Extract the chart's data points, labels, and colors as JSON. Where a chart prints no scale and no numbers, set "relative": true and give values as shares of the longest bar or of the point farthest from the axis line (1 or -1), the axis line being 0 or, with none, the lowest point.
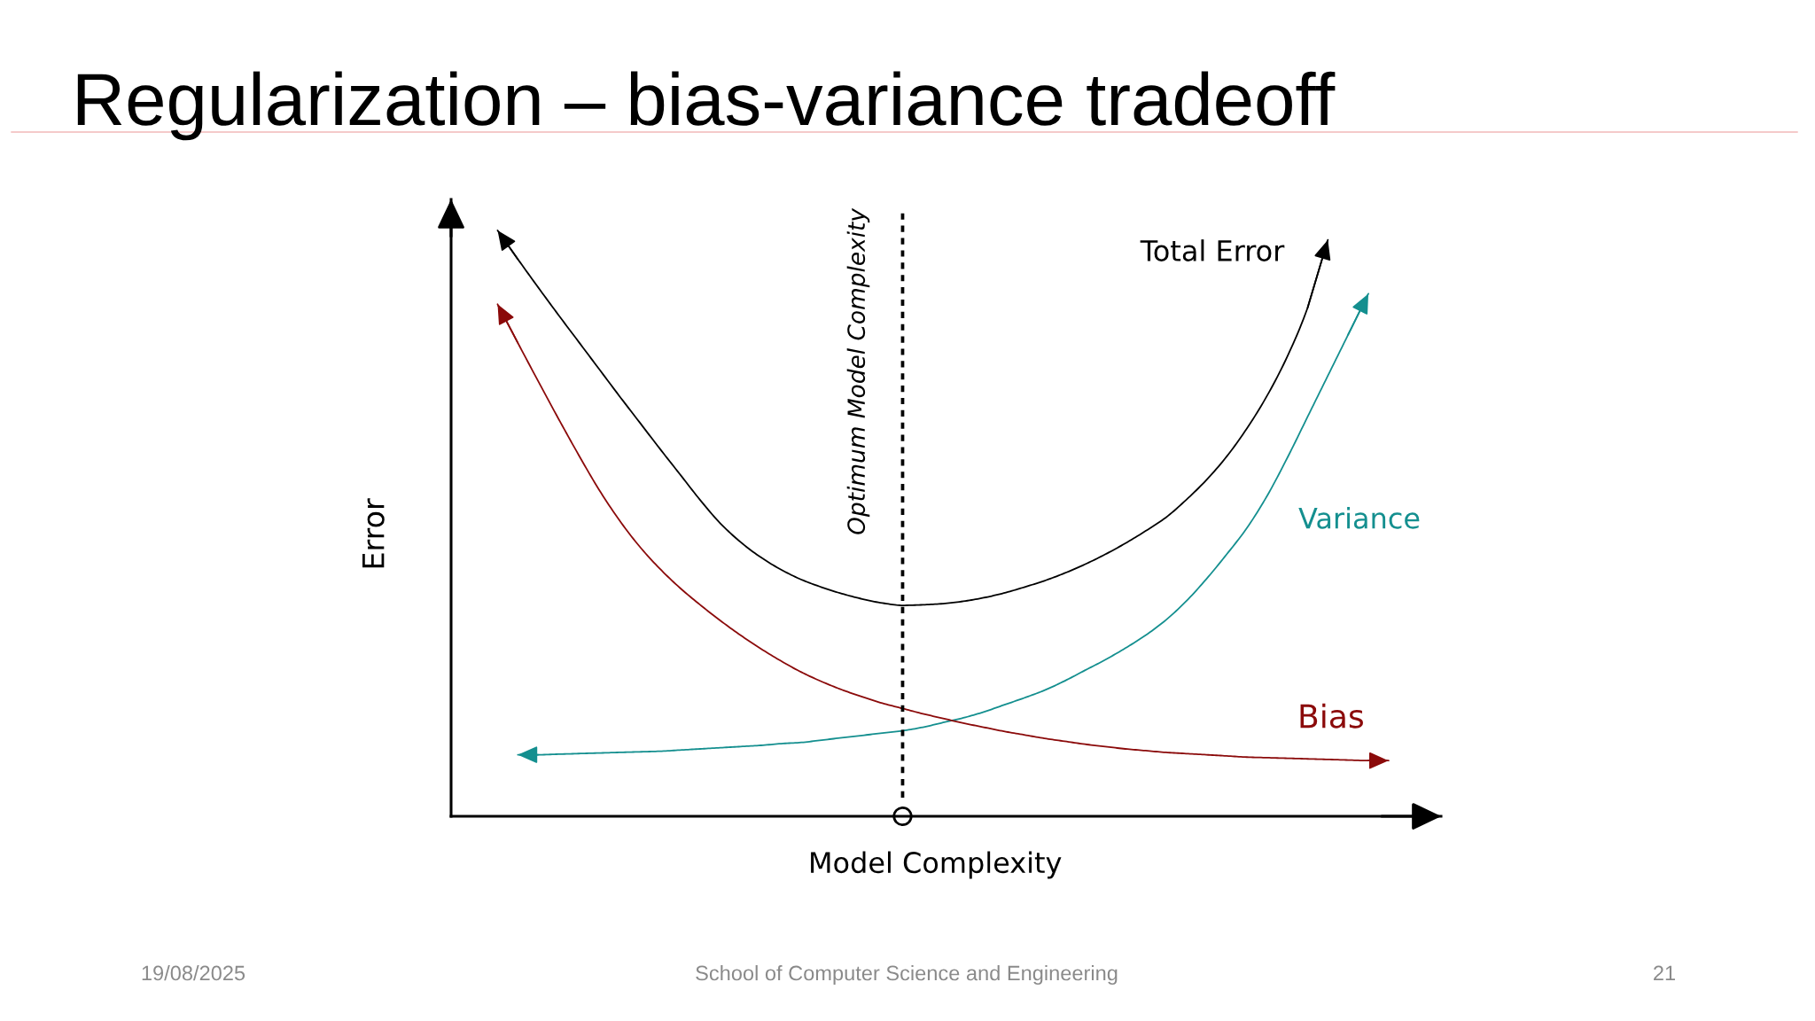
{
  "chart_data": {
    "type": "line",
    "title": "Regularization – bias-variance tradeoff",
    "xlabel": "Model Complexity",
    "ylabel": "Error",
    "relative": true,
    "tick_labels": false,
    "line_style": "solid",
    "categories": [
      null,
      null,
      null,
      null,
      null,
      null,
      null,
      null,
      null,
      null,
      null,
      null,
      null,
      null,
      null,
      null,
      null,
      null,
      null,
      null,
      null,
      null,
      null,
      null,
      null,
      null,
      null,
      null,
      null,
      null,
      null,
      null,
      null,
      null,
      null,
      null,
      null,
      null,
      null,
      null,
      null,
      null,
      null,
      null,
      null
    ],
    "series": [
      {
        "name": "Total Error",
        "color": "#000000",
        "values": [
          1.0,
          0.951,
          0.903,
          0.856,
          0.81,
          0.764,
          0.718,
          0.673,
          0.628,
          0.584,
          0.54,
          0.5,
          0.468,
          0.442,
          0.421,
          0.404,
          0.391,
          0.38,
          0.371,
          0.364,
          0.36,
          0.361,
          0.363,
          0.367,
          0.373,
          0.381,
          0.391,
          0.402,
          0.415,
          0.43,
          0.447,
          0.466,
          0.487,
          0.51,
          0.54,
          0.574,
          0.614,
          0.662,
          0.718,
          0.785,
          0.868,
          0.984,
          null,
          null,
          null
        ]
      },
      {
        "name": "Variance",
        "color": "#148f8f",
        "values": [
          null,
          0.105,
          0.105,
          0.106,
          0.107,
          0.108,
          0.109,
          0.11,
          0.111,
          0.113,
          0.115,
          0.117,
          0.119,
          0.121,
          0.124,
          0.126,
          0.13,
          0.134,
          0.138,
          0.142,
          0.146,
          0.152,
          0.16,
          0.168,
          0.178,
          0.19,
          0.202,
          0.215,
          0.231,
          0.249,
          0.267,
          0.287,
          0.309,
          0.335,
          0.367,
          0.405,
          0.447,
          0.492,
          0.547,
          0.612,
          0.682,
          0.752,
          0.822,
          0.892,
          null
        ]
      },
      {
        "name": "Bias",
        "color": "#8b0a0a",
        "values": [
          0.874,
          0.808,
          0.743,
          0.679,
          0.617,
          0.558,
          0.506,
          0.461,
          0.423,
          0.39,
          0.361,
          0.334,
          0.309,
          0.286,
          0.265,
          0.246,
          0.23,
          0.216,
          0.204,
          0.193,
          0.184,
          0.175,
          0.167,
          0.159,
          0.152,
          0.145,
          0.139,
          0.133,
          0.128,
          0.123,
          0.119,
          0.115,
          0.112,
          0.109,
          0.107,
          0.105,
          0.103,
          0.101,
          0.1,
          0.099,
          0.098,
          0.097,
          0.096,
          0.095,
          0.095
        ]
      }
    ],
    "annotations": [
      "Optimum Model Complexity",
      "19/08/2025",
      "School of Computer Science and Engineering",
      "21"
    ]
  }
}
